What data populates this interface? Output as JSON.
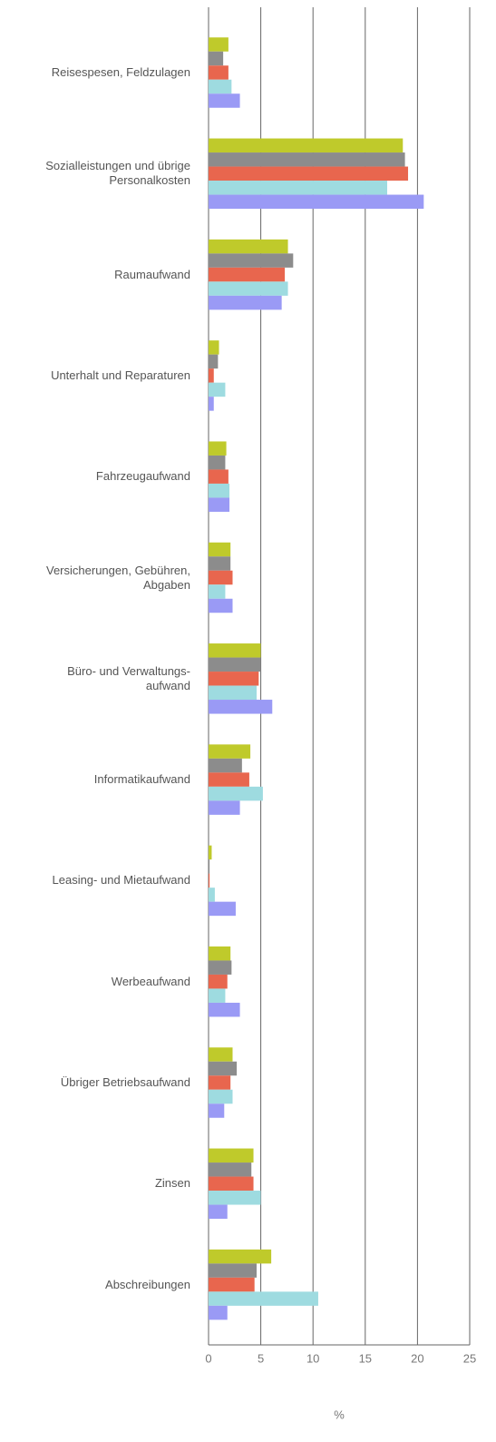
{
  "chart_data": {
    "type": "bar",
    "orientation": "horizontal",
    "categories": [
      "Reisespesen, Feldzulagen",
      "Sozialleistungen und übrige\nPersonalkosten",
      "Raumaufwand",
      "Unterhalt und Reparaturen",
      "Fahrzeugaufwand",
      "Versicherungen, Gebühren,\nAbgaben",
      "Büro- und Verwaltungs-\naufwand",
      "Informatikaufwand",
      "Leasing- und Mietaufwand",
      "Werbeaufwand",
      "Übriger Betriebsaufwand",
      "Zinsen",
      "Abschreibungen"
    ],
    "series": [
      {
        "color": "#bfca2b",
        "values": [
          1.9,
          18.6,
          7.6,
          1.0,
          1.7,
          2.1,
          5.0,
          4.0,
          0.3,
          2.1,
          2.3,
          4.3,
          6.0
        ]
      },
      {
        "color": "#8c8c8c",
        "values": [
          1.4,
          18.8,
          8.1,
          0.9,
          1.6,
          2.1,
          5.0,
          3.2,
          0.1,
          2.2,
          2.7,
          4.1,
          4.6
        ]
      },
      {
        "color": "#e8664e",
        "values": [
          1.9,
          19.1,
          7.3,
          0.5,
          1.9,
          2.3,
          4.8,
          3.9,
          0.1,
          1.8,
          2.1,
          4.3,
          4.4
        ]
      },
      {
        "color": "#9edbe0",
        "values": [
          2.2,
          17.1,
          7.6,
          1.6,
          2.0,
          1.6,
          4.6,
          5.2,
          0.6,
          1.6,
          2.3,
          5.0,
          10.5
        ]
      },
      {
        "color": "#9a9af5",
        "values": [
          3.0,
          20.6,
          7.0,
          0.5,
          2.0,
          2.3,
          6.1,
          3.0,
          2.6,
          3.0,
          1.5,
          1.8,
          1.8
        ]
      }
    ],
    "x_label": "%",
    "xlim": [
      0,
      25
    ],
    "xticks": [
      0,
      5,
      10,
      15,
      20,
      25
    ],
    "grid": true
  }
}
